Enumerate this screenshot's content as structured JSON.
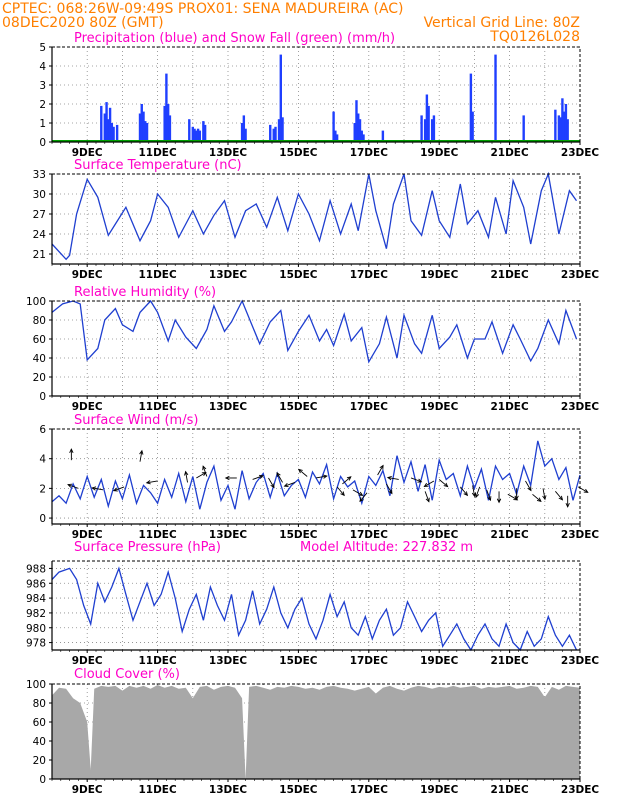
{
  "header": {
    "line1_left": "CPTEC:   068:26W-09:49S   PROX01: SENA MADUREIRA (AC)",
    "line2_left": "08DEC2020 80Z (GMT)",
    "line2_right": "Vertical Grid Line: 80Z",
    "line3_right": "TQ0126L028"
  },
  "x_tick_labels": [
    "9DEC",
    "11DEC",
    "13DEC",
    "15DEC",
    "17DEC",
    "19DEC",
    "21DEC",
    "23DEC"
  ],
  "colors": {
    "precip": "#1f3fff",
    "snow": "#00a000",
    "line": "#1f3fd0",
    "cloud": "#a8a8a8",
    "title": "#ff00c8",
    "header": "#ff7f00"
  },
  "chart_data": [
    {
      "type": "bar",
      "title": "Precipitation (blue) and Snow Fall (green) (mm/h)",
      "ylim": [
        0,
        5
      ],
      "yticks": [
        0,
        1,
        2,
        3,
        4,
        5
      ],
      "xlim_days": [
        8.0,
        23.0
      ],
      "bars": [
        [
          9.4,
          1.9
        ],
        [
          9.5,
          1.5
        ],
        [
          9.55,
          2.1
        ],
        [
          9.6,
          1.2
        ],
        [
          9.65,
          1.8
        ],
        [
          9.7,
          1.0
        ],
        [
          9.75,
          0.8
        ],
        [
          9.85,
          0.9
        ],
        [
          10.5,
          1.5
        ],
        [
          10.55,
          2.0
        ],
        [
          10.6,
          1.6
        ],
        [
          10.65,
          1.1
        ],
        [
          10.7,
          1.0
        ],
        [
          11.2,
          1.9
        ],
        [
          11.25,
          3.6
        ],
        [
          11.3,
          2.0
        ],
        [
          11.35,
          1.4
        ],
        [
          11.9,
          1.2
        ],
        [
          12.0,
          0.8
        ],
        [
          12.05,
          0.7
        ],
        [
          12.1,
          0.6
        ],
        [
          12.15,
          0.7
        ],
        [
          12.2,
          0.6
        ],
        [
          12.3,
          1.1
        ],
        [
          12.35,
          0.9
        ],
        [
          13.4,
          1.0
        ],
        [
          13.45,
          1.4
        ],
        [
          13.5,
          0.7
        ],
        [
          14.2,
          0.9
        ],
        [
          14.3,
          0.7
        ],
        [
          14.35,
          0.8
        ],
        [
          14.45,
          1.2
        ],
        [
          14.5,
          4.6
        ],
        [
          14.55,
          1.3
        ],
        [
          16.0,
          1.6
        ],
        [
          16.05,
          0.6
        ],
        [
          16.1,
          0.4
        ],
        [
          16.6,
          1.0
        ],
        [
          16.65,
          2.2
        ],
        [
          16.7,
          1.5
        ],
        [
          16.75,
          1.2
        ],
        [
          16.8,
          0.6
        ],
        [
          16.85,
          0.4
        ],
        [
          17.4,
          0.6
        ],
        [
          18.5,
          1.4
        ],
        [
          18.6,
          1.2
        ],
        [
          18.65,
          2.5
        ],
        [
          18.7,
          1.9
        ],
        [
          18.8,
          1.2
        ],
        [
          18.85,
          1.4
        ],
        [
          19.9,
          3.6
        ],
        [
          19.95,
          1.6
        ],
        [
          20.6,
          4.6
        ],
        [
          21.4,
          1.4
        ],
        [
          22.3,
          1.7
        ],
        [
          22.4,
          1.4
        ],
        [
          22.45,
          1.3
        ],
        [
          22.5,
          2.3
        ],
        [
          22.55,
          1.6
        ],
        [
          22.6,
          2.0
        ],
        [
          22.65,
          1.2
        ]
      ],
      "snow": 0
    },
    {
      "type": "line",
      "title": "Surface Temperature (nC)",
      "ylim": [
        19.5,
        33
      ],
      "yticks": [
        21,
        24,
        27,
        30,
        33
      ],
      "x": [
        8.0,
        8.4,
        8.5,
        8.7,
        9.0,
        9.3,
        9.6,
        9.8,
        10.1,
        10.5,
        10.8,
        11.0,
        11.3,
        11.6,
        11.8,
        12.0,
        12.3,
        12.6,
        12.9,
        13.2,
        13.5,
        13.8,
        14.1,
        14.4,
        14.7,
        15.0,
        15.3,
        15.6,
        15.9,
        16.2,
        16.5,
        16.7,
        17.0,
        17.2,
        17.5,
        17.7,
        18.0,
        18.2,
        18.5,
        18.8,
        19.0,
        19.3,
        19.6,
        19.8,
        20.1,
        20.4,
        20.6,
        20.9,
        21.1,
        21.4,
        21.6,
        21.9,
        22.1,
        22.4,
        22.7,
        22.9
      ],
      "values": [
        22.5,
        20.2,
        20.8,
        27.0,
        32.2,
        29.5,
        23.8,
        25.5,
        28.0,
        23.0,
        26.0,
        30.0,
        28.0,
        23.5,
        25.5,
        27.5,
        24.0,
        26.8,
        29.0,
        23.5,
        27.5,
        28.5,
        25.0,
        29.5,
        24.5,
        30.0,
        27.0,
        23.0,
        29.0,
        24.0,
        28.5,
        24.5,
        33.0,
        27.5,
        21.8,
        28.5,
        33.0,
        26.0,
        23.8,
        30.5,
        26.0,
        23.5,
        31.5,
        25.5,
        27.5,
        23.5,
        29.5,
        24.0,
        32.0,
        28.0,
        22.5,
        30.5,
        33.0,
        24.0,
        30.5,
        29.0
      ],
      "dx": []
    },
    {
      "type": "line",
      "title": "Relative Humidity (%)",
      "ylim": [
        0,
        100
      ],
      "yticks": [
        0,
        20,
        40,
        60,
        80,
        100
      ],
      "x": [
        8.0,
        8.3,
        8.6,
        8.8,
        9.0,
        9.3,
        9.5,
        9.8,
        10.0,
        10.3,
        10.5,
        10.8,
        11.0,
        11.3,
        11.5,
        11.8,
        12.1,
        12.4,
        12.6,
        12.9,
        13.1,
        13.4,
        13.7,
        13.9,
        14.2,
        14.5,
        14.7,
        15.0,
        15.3,
        15.6,
        15.8,
        16.0,
        16.3,
        16.5,
        16.8,
        17.0,
        17.3,
        17.5,
        17.8,
        18.0,
        18.3,
        18.5,
        18.8,
        19.0,
        19.3,
        19.5,
        19.8,
        20.0,
        20.3,
        20.5,
        20.8,
        21.1,
        21.3,
        21.6,
        21.8,
        22.1,
        22.4,
        22.6,
        22.9
      ],
      "values": [
        88,
        97,
        100,
        97,
        38,
        50,
        80,
        92,
        75,
        68,
        88,
        100,
        88,
        58,
        80,
        62,
        50,
        70,
        95,
        68,
        78,
        100,
        73,
        55,
        78,
        90,
        48,
        68,
        85,
        58,
        70,
        53,
        86,
        58,
        72,
        36,
        55,
        83,
        40,
        85,
        55,
        45,
        85,
        50,
        62,
        75,
        40,
        60,
        60,
        78,
        45,
        75,
        60,
        37,
        50,
        80,
        55,
        90,
        60
      ],
      "dx": []
    },
    {
      "type": "line",
      "title": "Surface Wind (m/s)",
      "ylim": [
        -0.4,
        6
      ],
      "yticks": [
        0,
        2,
        4,
        6
      ],
      "x": [
        8.0,
        8.2,
        8.4,
        8.6,
        8.8,
        9.0,
        9.2,
        9.4,
        9.6,
        9.8,
        10.0,
        10.2,
        10.4,
        10.6,
        10.8,
        11.0,
        11.2,
        11.4,
        11.6,
        11.8,
        12.0,
        12.2,
        12.4,
        12.6,
        12.8,
        13.0,
        13.2,
        13.4,
        13.6,
        13.8,
        14.0,
        14.2,
        14.4,
        14.6,
        14.8,
        15.0,
        15.2,
        15.4,
        15.6,
        15.8,
        16.0,
        16.2,
        16.4,
        16.6,
        16.8,
        17.0,
        17.2,
        17.4,
        17.6,
        17.8,
        18.0,
        18.2,
        18.4,
        18.6,
        18.8,
        19.0,
        19.2,
        19.4,
        19.6,
        19.8,
        20.0,
        20.2,
        20.4,
        20.6,
        20.8,
        21.0,
        21.2,
        21.4,
        21.6,
        21.8,
        22.0,
        22.2,
        22.4,
        22.6,
        22.8,
        23.0
      ],
      "values": [
        1.1,
        1.5,
        1.0,
        2.3,
        1.3,
        2.8,
        1.4,
        2.6,
        0.8,
        2.5,
        1.3,
        2.9,
        1.0,
        2.2,
        1.7,
        1.0,
        2.6,
        1.4,
        3.0,
        1.1,
        2.8,
        0.6,
        2.4,
        3.5,
        1.2,
        2.2,
        0.6,
        3.2,
        1.3,
        2.4,
        3.0,
        1.4,
        3.0,
        1.5,
        2.2,
        2.6,
        1.4,
        3.1,
        2.3,
        3.6,
        1.3,
        2.8,
        2.1,
        2.5,
        1.0,
        2.8,
        2.2,
        3.2,
        1.5,
        4.2,
        2.4,
        3.8,
        1.8,
        3.6,
        1.2,
        3.9,
        2.6,
        3.0,
        1.5,
        3.5,
        2.0,
        3.3,
        1.2,
        3.5,
        2.6,
        3.0,
        1.6,
        3.5,
        2.2,
        5.2,
        3.5,
        4.0,
        2.6,
        3.4,
        1.2,
        2.9
      ],
      "arrows": [
        [
          8.4,
          4,
          3,
          3
        ],
        [
          8.7,
          -8,
          3,
          0
        ],
        [
          9.3,
          10,
          3,
          0
        ],
        [
          10.0,
          0,
          8,
          8
        ],
        [
          10.4,
          0,
          8,
          8
        ],
        [
          11.0,
          10,
          8,
          8
        ],
        [
          11.6,
          10,
          0,
          1
        ],
        [
          12.0,
          -10,
          3,
          4
        ],
        [
          12.4,
          0,
          8,
          4
        ],
        [
          12.7,
          8,
          8,
          8
        ],
        [
          13.2,
          8,
          8,
          8
        ],
        [
          13.6,
          8,
          8,
          8
        ],
        [
          14.0,
          8,
          8,
          8
        ],
        [
          14.4,
          8,
          8,
          8
        ],
        [
          14.8,
          8,
          8,
          8
        ],
        [
          15.2,
          8,
          8,
          8
        ],
        [
          15.5,
          8,
          8,
          8
        ],
        [
          15.9,
          8,
          8,
          8
        ],
        [
          16.2,
          8,
          8,
          8
        ],
        [
          16.6,
          8,
          8,
          8
        ],
        [
          16.9,
          8,
          8,
          8
        ],
        [
          17.3,
          8,
          8,
          8
        ],
        [
          17.7,
          8,
          8,
          8
        ],
        [
          18.0,
          8,
          8,
          8
        ],
        [
          18.4,
          8,
          8,
          8
        ],
        [
          18.7,
          8,
          8,
          8
        ],
        [
          19.0,
          8,
          8,
          8
        ],
        [
          19.4,
          8,
          8,
          8
        ],
        [
          19.7,
          8,
          8,
          8
        ],
        [
          20.1,
          8,
          8,
          8
        ],
        [
          20.4,
          8,
          8,
          8
        ],
        [
          20.8,
          8,
          8,
          8
        ],
        [
          21.1,
          8,
          8,
          8
        ],
        [
          21.5,
          8,
          8,
          8
        ],
        [
          21.9,
          8,
          8,
          8
        ],
        [
          22.3,
          8,
          8,
          8
        ],
        [
          22.6,
          8,
          8,
          8
        ]
      ]
    },
    {
      "type": "line",
      "title": "Surface Pressure (hPa)",
      "annotation": "Model Altitude: 227.832  m",
      "ylim": [
        977,
        989
      ],
      "yticks": [
        978,
        980,
        982,
        984,
        986,
        988
      ],
      "x": [
        8.0,
        8.2,
        8.5,
        8.7,
        8.9,
        9.1,
        9.3,
        9.5,
        9.7,
        9.9,
        10.1,
        10.3,
        10.5,
        10.7,
        10.9,
        11.1,
        11.3,
        11.5,
        11.7,
        11.9,
        12.1,
        12.3,
        12.5,
        12.7,
        12.9,
        13.1,
        13.3,
        13.5,
        13.7,
        13.9,
        14.1,
        14.3,
        14.5,
        14.7,
        14.9,
        15.1,
        15.3,
        15.5,
        15.7,
        15.9,
        16.1,
        16.3,
        16.5,
        16.7,
        16.9,
        17.1,
        17.3,
        17.5,
        17.7,
        17.9,
        18.1,
        18.3,
        18.5,
        18.7,
        18.9,
        19.1,
        19.3,
        19.5,
        19.7,
        19.9,
        20.1,
        20.3,
        20.5,
        20.7,
        20.9,
        21.1,
        21.3,
        21.5,
        21.7,
        21.9,
        22.1,
        22.3,
        22.5,
        22.7,
        22.9
      ],
      "values": [
        986.5,
        987.5,
        988.0,
        986.5,
        983.0,
        980.5,
        986.0,
        983.5,
        985.5,
        988.0,
        984.5,
        981.0,
        983.5,
        986.0,
        983.0,
        984.5,
        987.5,
        984.0,
        979.5,
        982.5,
        984.5,
        981.0,
        985.5,
        983.0,
        981.0,
        984.5,
        979.0,
        981.0,
        985.0,
        980.5,
        982.5,
        985.5,
        982.0,
        980.0,
        982.5,
        984.0,
        980.5,
        978.5,
        981.0,
        984.5,
        981.5,
        983.5,
        980.0,
        979.0,
        981.5,
        978.5,
        981.0,
        982.5,
        979.0,
        980.0,
        983.5,
        981.5,
        979.5,
        981.0,
        982.0,
        977.5,
        979.0,
        980.5,
        978.5,
        977.0,
        979.0,
        980.5,
        978.5,
        977.5,
        980.5,
        978.0,
        977.0,
        979.5,
        977.5,
        978.5,
        981.5,
        979.0,
        977.5,
        979.0,
        977.0
      ],
      "dx": []
    },
    {
      "type": "area",
      "title": "Cloud Cover (%)",
      "ylim": [
        0,
        100
      ],
      "yticks": [
        0,
        20,
        40,
        60,
        80,
        100
      ],
      "x": [
        8.0,
        8.2,
        8.4,
        8.6,
        8.8,
        9.0,
        9.1,
        9.2,
        9.4,
        9.6,
        9.8,
        10.0,
        10.2,
        10.4,
        10.6,
        10.8,
        11.0,
        11.2,
        11.4,
        11.6,
        11.8,
        12.0,
        12.2,
        12.4,
        12.6,
        12.8,
        13.0,
        13.2,
        13.4,
        13.5,
        13.6,
        13.8,
        14.0,
        14.2,
        14.4,
        14.6,
        14.8,
        15.0,
        15.2,
        15.4,
        15.6,
        15.8,
        16.0,
        16.2,
        16.4,
        16.6,
        16.8,
        17.0,
        17.2,
        17.4,
        17.6,
        17.8,
        18.0,
        18.2,
        18.4,
        18.6,
        18.8,
        19.0,
        19.2,
        19.4,
        19.6,
        19.8,
        20.0,
        20.2,
        20.4,
        20.6,
        20.8,
        21.0,
        21.2,
        21.4,
        21.6,
        21.8,
        22.0,
        22.2,
        22.4,
        22.6,
        22.8,
        23.0
      ],
      "values": [
        88,
        96,
        95,
        85,
        80,
        60,
        10,
        95,
        98,
        97,
        98,
        93,
        98,
        96,
        98,
        95,
        99,
        96,
        98,
        95,
        96,
        85,
        97,
        98,
        94,
        97,
        98,
        96,
        85,
        0,
        97,
        98,
        96,
        94,
        97,
        96,
        98,
        97,
        95,
        96,
        94,
        97,
        98,
        96,
        95,
        93,
        95,
        97,
        90,
        96,
        98,
        95,
        93,
        96,
        98,
        97,
        95,
        97,
        96,
        98,
        96,
        97,
        98,
        95,
        97,
        96,
        97,
        98,
        95,
        96,
        98,
        97,
        86,
        97,
        94,
        98,
        97,
        96
      ],
      "dx": []
    }
  ],
  "wind_arrows": [
    [
      8.55,
      3.9,
      90
    ],
    [
      8.75,
      2.0,
      160
    ],
    [
      9.45,
      1.9,
      170
    ],
    [
      10.05,
      2.1,
      200
    ],
    [
      10.5,
      3.8,
      80
    ],
    [
      11.0,
      2.5,
      190
    ],
    [
      11.85,
      2.4,
      100
    ],
    [
      12.1,
      2.7,
      30
    ],
    [
      12.4,
      2.8,
      110
    ],
    [
      13.25,
      2.7,
      180
    ],
    [
      13.7,
      2.6,
      20
    ],
    [
      14.15,
      2.7,
      300
    ],
    [
      14.55,
      2.4,
      120
    ],
    [
      14.9,
      2.4,
      200
    ],
    [
      15.25,
      2.8,
      140
    ],
    [
      15.5,
      2.7,
      10
    ],
    [
      16.1,
      2.1,
      310
    ],
    [
      16.25,
      2.3,
      40
    ],
    [
      16.55,
      1.9,
      330
    ],
    [
      16.95,
      1.7,
      230
    ],
    [
      17.25,
      2.9,
      60
    ],
    [
      17.5,
      2.3,
      300
    ],
    [
      17.85,
      2.6,
      170
    ],
    [
      18.2,
      2.7,
      340
    ],
    [
      18.6,
      1.8,
      290
    ],
    [
      18.85,
      2.5,
      210
    ],
    [
      19.0,
      2.6,
      320
    ],
    [
      19.6,
      2.1,
      310
    ],
    [
      19.95,
      2.2,
      280
    ],
    [
      20.15,
      2.1,
      250
    ],
    [
      20.35,
      1.9,
      290
    ],
    [
      20.7,
      1.8,
      270
    ],
    [
      20.95,
      1.6,
      330
    ],
    [
      21.2,
      2.0,
      270
    ],
    [
      21.45,
      2.5,
      300
    ],
    [
      21.65,
      1.6,
      320
    ],
    [
      21.95,
      2.0,
      280
    ],
    [
      22.3,
      1.8,
      310
    ],
    [
      22.65,
      1.5,
      270
    ],
    [
      22.95,
      2.1,
      330
    ]
  ]
}
